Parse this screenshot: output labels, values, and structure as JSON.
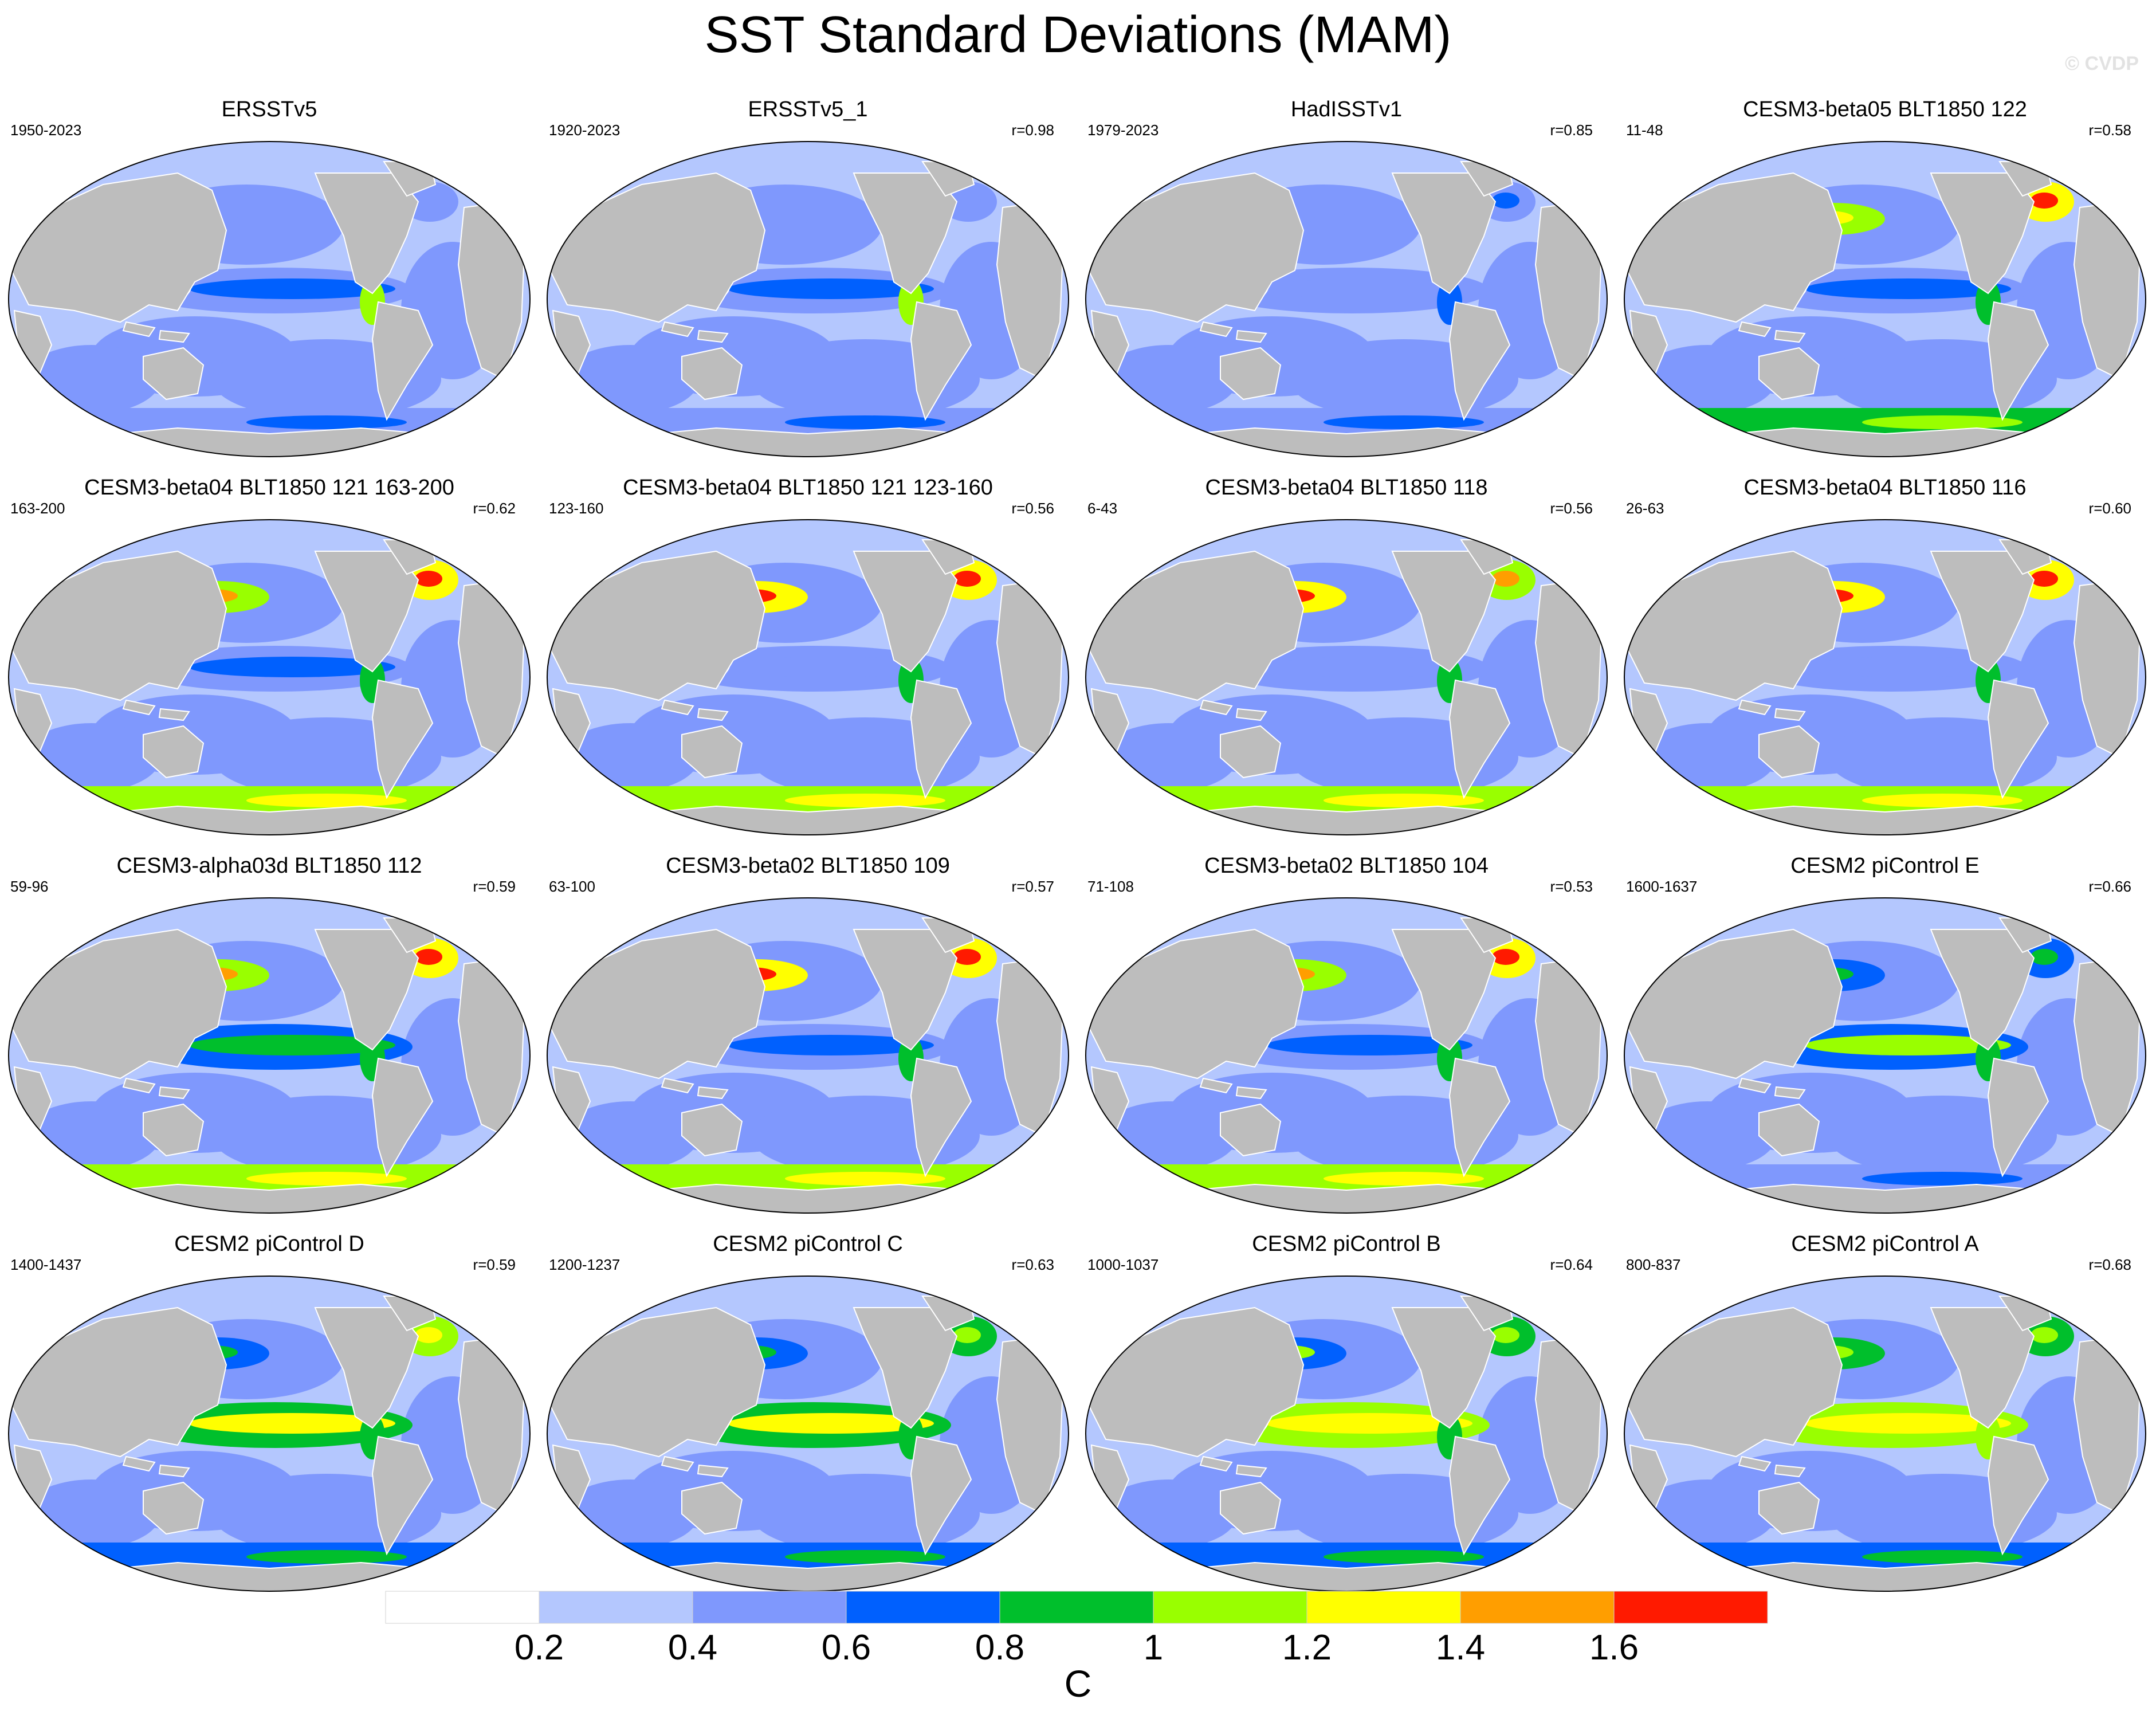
{
  "title": "SST Standard Deviations (MAM)",
  "watermark": "© CVDP",
  "colors": {
    "land": "#bdbdbd",
    "levels": [
      "#ffffff",
      "#b4c7fe",
      "#7f98fd",
      "#0060fe",
      "#00bf2c",
      "#99ff00",
      "#ffff00",
      "#ff9e00",
      "#ff1a00"
    ]
  },
  "panels": [
    {
      "title": "ERSSTv5",
      "years": "1950-2023",
      "r": "",
      "profile": {
        "tropical": 0.65,
        "east": 1.1,
        "kuroshio": 0.45,
        "gulfstream": 0.45,
        "southern": 0.35
      }
    },
    {
      "title": "ERSSTv5_1",
      "years": "1920-2023",
      "r": "r=0.98",
      "profile": {
        "tropical": 0.65,
        "east": 1.0,
        "kuroshio": 0.45,
        "gulfstream": 0.45,
        "southern": 0.35
      }
    },
    {
      "title": "HadISSTv1",
      "years": "1979-2023",
      "r": "r=0.85",
      "profile": {
        "tropical": 0.6,
        "east": 0.75,
        "kuroshio": 0.4,
        "gulfstream": 0.65,
        "southern": 0.25
      }
    },
    {
      "title": "CESM3-beta05 BLT1850 122",
      "years": "11-48",
      "r": "r=0.58",
      "profile": {
        "tropical": 0.65,
        "east": 0.9,
        "kuroshio": 1.3,
        "gulfstream": 1.6,
        "southern": 0.75
      }
    },
    {
      "title": "CESM3-beta04 BLT1850 121 163-200",
      "years": "163-200",
      "r": "r=0.62",
      "profile": {
        "tropical": 0.65,
        "east": 0.9,
        "kuroshio": 1.5,
        "gulfstream": 1.7,
        "southern": 0.85
      }
    },
    {
      "title": "CESM3-beta04 BLT1850 121 123-160",
      "years": "123-160",
      "r": "r=0.56",
      "profile": {
        "tropical": 0.55,
        "east": 0.8,
        "kuroshio": 1.7,
        "gulfstream": 1.7,
        "southern": 0.85
      }
    },
    {
      "title": "CESM3-beta04 BLT1850 118",
      "years": "6-43",
      "r": "r=0.56",
      "profile": {
        "tropical": 0.55,
        "east": 0.8,
        "kuroshio": 1.6,
        "gulfstream": 1.5,
        "southern": 0.85
      }
    },
    {
      "title": "CESM3-beta04 BLT1850 116",
      "years": "26-63",
      "r": "r=0.60",
      "profile": {
        "tropical": 0.6,
        "east": 0.85,
        "kuroshio": 1.6,
        "gulfstream": 1.7,
        "southern": 0.85
      }
    },
    {
      "title": "CESM3-alpha03d BLT1850 112",
      "years": "59-96",
      "r": "r=0.59",
      "profile": {
        "tropical": 0.95,
        "east": 0.9,
        "kuroshio": 1.5,
        "gulfstream": 1.6,
        "southern": 0.85
      }
    },
    {
      "title": "CESM3-beta02 BLT1850 109",
      "years": "63-100",
      "r": "r=0.57",
      "profile": {
        "tropical": 0.75,
        "east": 0.9,
        "kuroshio": 1.7,
        "gulfstream": 1.6,
        "southern": 0.85
      }
    },
    {
      "title": "CESM3-beta02 BLT1850 104",
      "years": "71-108",
      "r": "r=0.53",
      "profile": {
        "tropical": 0.75,
        "east": 0.9,
        "kuroshio": 1.5,
        "gulfstream": 1.6,
        "southern": 0.85
      }
    },
    {
      "title": "CESM2 piControl E",
      "years": "1600-1637",
      "r": "r=0.66",
      "profile": {
        "tropical": 1.05,
        "east": 0.9,
        "kuroshio": 0.9,
        "gulfstream": 0.9,
        "southern": 0.35
      }
    },
    {
      "title": "CESM2 piControl D",
      "years": "1400-1437",
      "r": "r=0.59",
      "profile": {
        "tropical": 1.25,
        "east": 0.9,
        "kuroshio": 0.9,
        "gulfstream": 1.3,
        "southern": 0.45
      }
    },
    {
      "title": "CESM2 piControl C",
      "years": "1200-1237",
      "r": "r=0.63",
      "profile": {
        "tropical": 1.25,
        "east": 0.95,
        "kuroshio": 0.9,
        "gulfstream": 1.1,
        "southern": 0.45
      }
    },
    {
      "title": "CESM2 piControl B",
      "years": "1000-1037",
      "r": "r=0.64",
      "profile": {
        "tropical": 1.3,
        "east": 0.95,
        "kuroshio": 1.0,
        "gulfstream": 1.1,
        "southern": 0.45
      }
    },
    {
      "title": "CESM2 piControl A",
      "years": "800-837",
      "r": "r=0.68",
      "profile": {
        "tropical": 1.3,
        "east": 1.0,
        "kuroshio": 1.1,
        "gulfstream": 1.2,
        "southern": 0.45
      }
    }
  ],
  "colorbar": {
    "ticks": [
      "0.2",
      "0.4",
      "0.6",
      "0.8",
      "1",
      "1.2",
      "1.4",
      "1.6"
    ],
    "unit": "C"
  }
}
